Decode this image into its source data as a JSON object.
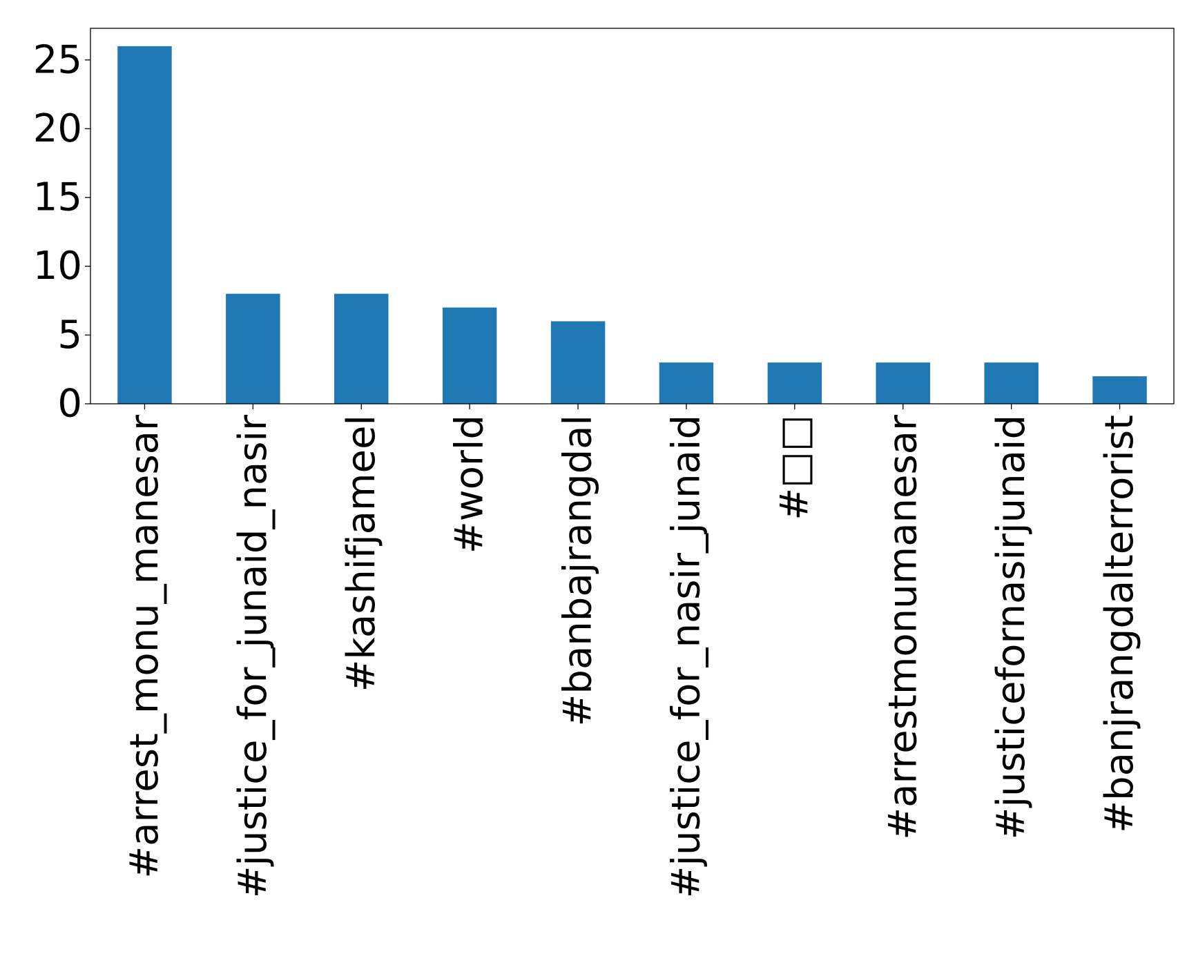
{
  "chart_data": {
    "type": "bar",
    "title": "",
    "xlabel": "",
    "ylabel": "",
    "categories": [
      "#arrest_monu_manesar",
      "#justice_for_junaid_nasir",
      "#kashifjameel",
      "#world",
      "#banbajrangdal",
      "#justice_for_nasir_junaid",
      "#□□",
      "#arrestmonumanesar",
      "#justicefornasirjunaid",
      "#banjrangdalterrorist"
    ],
    "values": [
      26,
      8,
      8,
      7,
      6,
      3,
      3,
      3,
      3,
      2
    ],
    "ylim": [
      0,
      27.3
    ],
    "yticks": [
      0,
      5,
      10,
      15,
      20,
      25
    ],
    "ytick_labels": [
      "0",
      "5",
      "10",
      "15",
      "20",
      "25"
    ],
    "grid": false,
    "legend": "none",
    "colors": {
      "bar": "#1f77b4",
      "axis": "#000000",
      "text": "#000000",
      "background": "#ffffff"
    }
  }
}
